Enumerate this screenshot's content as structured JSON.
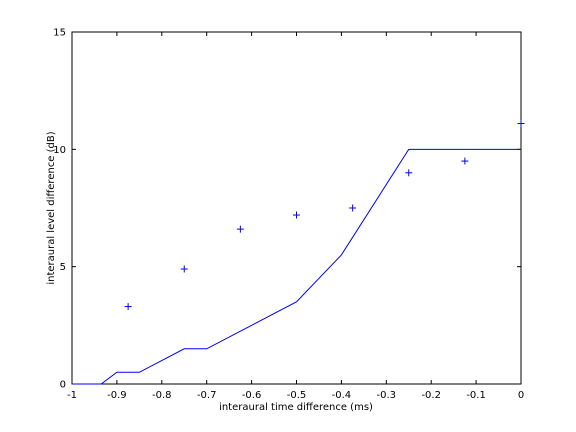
{
  "chart_data": {
    "type": "line",
    "xlabel": "interaural time difference (ms)",
    "ylabel": "interaural level difference (dB)",
    "xlim": [
      -1,
      0
    ],
    "ylim": [
      0,
      15
    ],
    "xticks": [
      -1,
      -0.9,
      -0.8,
      -0.7,
      -0.6,
      -0.5,
      -0.4,
      -0.3,
      -0.2,
      -0.1,
      0
    ],
    "xtick_labels": [
      "-1",
      "-0.9",
      "-0.8",
      "-0.7",
      "-0.6",
      "-0.5",
      "-0.4",
      "-0.3",
      "-0.2",
      "-0.1",
      "0"
    ],
    "yticks": [
      0,
      5,
      10,
      15
    ],
    "ytick_labels": [
      "0",
      "5",
      "10",
      "15"
    ],
    "grid": false,
    "series": [
      {
        "type": "line",
        "color": "#0000ff",
        "x": [
          -1,
          -0.935,
          -0.9,
          -0.85,
          -0.75,
          -0.7,
          -0.5,
          -0.4,
          -0.25,
          0
        ],
        "y": [
          0,
          0,
          0.5,
          0.5,
          1.5,
          1.5,
          3.5,
          5.5,
          10,
          10
        ]
      },
      {
        "type": "scatter",
        "marker": "+",
        "color": "#0000ff",
        "x": [
          -0.875,
          -0.75,
          -0.625,
          -0.5,
          -0.375,
          -0.25,
          -0.125,
          0
        ],
        "y": [
          3.3,
          4.9,
          6.6,
          7.2,
          7.5,
          9.0,
          9.5,
          11.1
        ]
      }
    ]
  }
}
